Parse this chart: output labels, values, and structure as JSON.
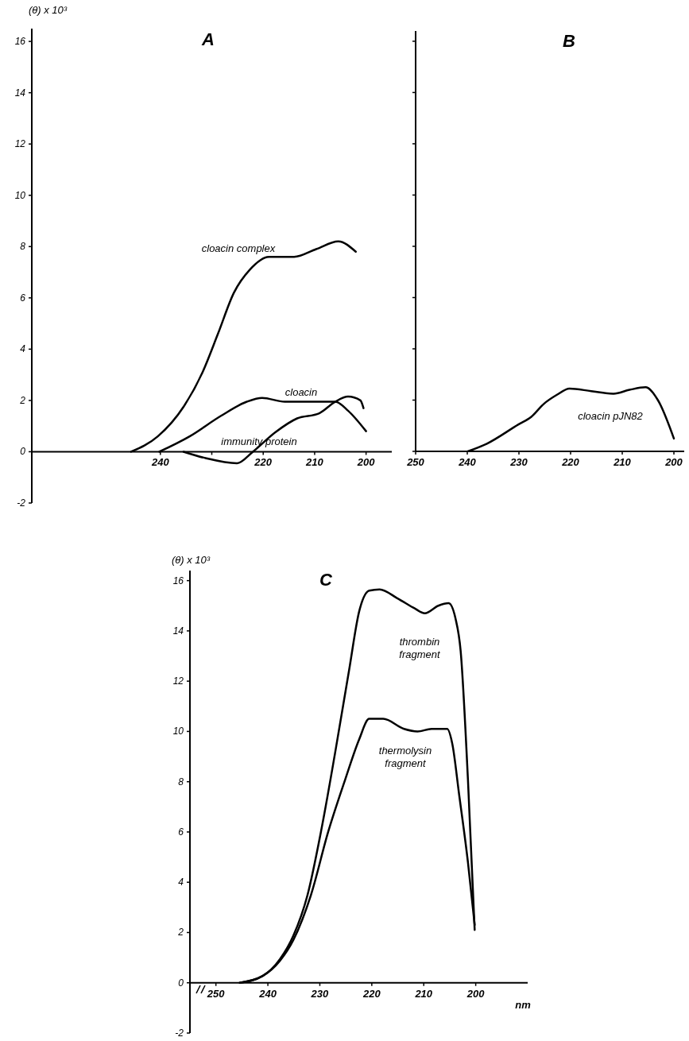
{
  "chart_data": [
    {
      "type": "line",
      "title": "A",
      "ylabel": "(θ) x 10³",
      "marker": "none",
      "xlim": [
        265,
        195
      ],
      "ylim": [
        -2,
        16.5
      ],
      "xticks": [
        240,
        {
          "value": 230,
          "label": null
        },
        220,
        210,
        200
      ],
      "yticks": [
        -2,
        0,
        2,
        4,
        6,
        8,
        10,
        12,
        14,
        16
      ],
      "series": [
        {
          "name": "cloacin complex",
          "color": "#000000",
          "x": [
            245.7,
            240.5,
            235.5,
            231.8,
            228.8,
            225.7,
            222.6,
            218.9,
            214,
            209.7,
            205.4,
            202
          ],
          "values": [
            0,
            0.6,
            1.75,
            3.1,
            4.6,
            6.2,
            7.1,
            7.6,
            7.6,
            7.9,
            8.2,
            7.8
          ]
        },
        {
          "name": "cloacin",
          "color": "#000000",
          "x": [
            240.2,
            234.3,
            228.2,
            223.2,
            220.2,
            215.8,
            209.7,
            206,
            203.5,
            200
          ],
          "values": [
            0,
            0.6,
            1.4,
            1.95,
            2.1,
            1.95,
            1.95,
            1.95,
            1.6,
            0.8
          ]
        },
        {
          "name": "immunity protein",
          "color": "#000000",
          "x": [
            235.5,
            231.2,
            225.1,
            222,
            217.7,
            213.4,
            209.1,
            206,
            203.5,
            201.1,
            200.5
          ],
          "values": [
            0,
            -0.25,
            -0.45,
            0,
            0.75,
            1.3,
            1.5,
            1.95,
            2.15,
            2,
            1.7
          ]
        }
      ]
    },
    {
      "type": "line",
      "title": "B",
      "marker": "none",
      "tick_labels": "x",
      "xlim": [
        250,
        198
      ],
      "ylim": [
        0,
        16.4
      ],
      "xticks": [
        250,
        240,
        230,
        220,
        210,
        200
      ],
      "yticks": [
        0,
        2,
        4,
        6,
        8,
        10,
        12,
        14,
        16
      ],
      "series": [
        {
          "name": "cloacin pJN82",
          "color": "#000000",
          "x": [
            239.9,
            236.2,
            230.1,
            227.6,
            225.2,
            222.7,
            220.2,
            216,
            211.7,
            208.6,
            205.5,
            203.1,
            200
          ],
          "values": [
            0,
            0.3,
            1.05,
            1.35,
            1.85,
            2.2,
            2.45,
            2.35,
            2.25,
            2.4,
            2.5,
            2,
            0.5
          ]
        }
      ]
    },
    {
      "type": "line",
      "title": "C",
      "ylabel": "(θ) x 10³",
      "xlabel": "nm",
      "marker": "none",
      "xlim": [
        255,
        190
      ],
      "ylim": [
        -2,
        16.4
      ],
      "xticks": [
        250,
        240,
        230,
        220,
        210,
        200
      ],
      "yticks": [
        -2,
        0,
        2,
        4,
        6,
        8,
        10,
        12,
        14,
        16
      ],
      "series": [
        {
          "name": "thrombin fragment",
          "color": "#000000",
          "x": [
            245.4,
            241,
            237.7,
            235.1,
            232.4,
            229.7,
            227.1,
            224.4,
            222.4,
            220.5,
            218.5,
            215.1,
            211.8,
            209.8,
            207.2,
            205.2,
            203.9,
            202.9,
            201.5,
            200.2
          ],
          "values": [
            0,
            0.27,
            0.93,
            1.87,
            3.47,
            6.1,
            9.1,
            12.4,
            14.8,
            15.6,
            15.65,
            15.3,
            14.9,
            14.7,
            15,
            15.1,
            14.5,
            13.2,
            8.1,
            2.1
          ]
        },
        {
          "name": "thermolysin fragment",
          "color": "#000000",
          "x": [
            245.4,
            241,
            237.7,
            235.1,
            231.7,
            228.4,
            225.1,
            222.4,
            220.5,
            217.8,
            213.8,
            211.2,
            208.5,
            205.5,
            204.5,
            203.2,
            201.5,
            200.2
          ],
          "values": [
            0,
            0.27,
            0.87,
            1.7,
            3.5,
            6,
            8.1,
            9.7,
            10.5,
            10.5,
            10.1,
            10,
            10.1,
            10.1,
            9.5,
            7.5,
            4.8,
            2.3
          ]
        }
      ]
    }
  ]
}
